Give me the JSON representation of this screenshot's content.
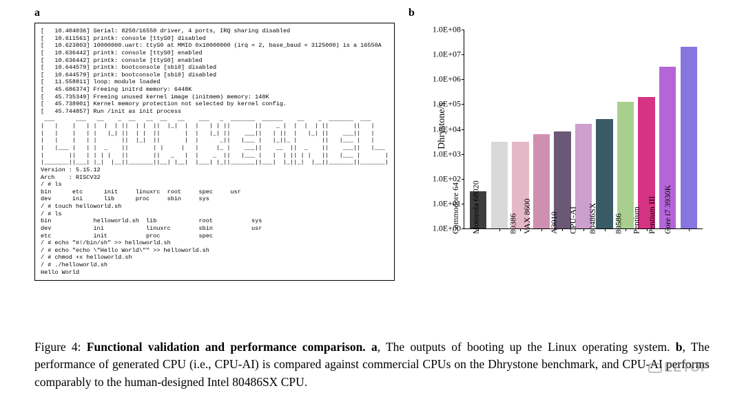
{
  "panel_a": {
    "label": "a",
    "terminal_lines": [
      "[   10.404036] Serial: 8250/16550 driver, 4 ports, IRQ sharing disabled",
      "[   10.611561] printk: console [ttyS0] disabled",
      "[   10.623803] 10000000.uart: ttyS0 at MMIO 0x10000000 (irq = 2, base_baud = 3125000) is a 16550A",
      "[   10.636442] printk: console [ttyS0] enabled",
      "[   10.636442] printk: console [ttyS0] enabled",
      "[   10.644579] printk: bootconsole [sbi0] disabled",
      "[   10.644579] printk: bootconsole [sbi0] disabled",
      "[   11.558811] loop: module loaded",
      "[   45.686374] Freeing initrd memory: 6448K",
      "[   45.735349] Freeing unused kernel image (initmem) memory: 148K",
      "[   45.738901] Kernel memory protection not selected by kernel config.",
      "[   45.744857] Run /init as init process",
      " ___      ___   __    _  __   __  __   __    ___   _  _______  ______    __    _  _______  ___     ",
      "|   |    |   | |  |  | ||  | |  ||  |_|  |  |   | | ||       ||    _ |  |  |  | ||       ||   |    ",
      "|   |    |   | |   |_| ||  | |  ||       |  |   |_| ||    ___||   | ||  |   |_| ||    ___||   |    ",
      "|   |    |   | |       ||  |_|  ||       |  |      _||   |___ |   |_||_ |       ||   |___ |   |    ",
      "|   |___ |   | |  _    ||       | |     |   |     |_ |    ___||    __  ||  _    ||    ___||   |___ ",
      "|       ||   | | | |   ||       ||   _   |  |    _  ||   |___ |   |  | || | |   ||   |___ |       |",
      "|_______||___| |_|  |__||_______||__| |__|  |___| |_||_______||___|  |_||_|  |__||_______||_______|",
      "Version : 5.15.12",
      "Arch    : RISCV32",
      "/ # ls",
      "bin      etc      init     linuxrc  root     spec     usr",
      "dev      ini      lib      proc     sbin     sys",
      "/ # touch helloworld.sh",
      "/ # ls",
      "bin            helloworld.sh  lib            root           sys",
      "dev            ini            linuxrc        sbin           usr",
      "etc            init           proc           spec",
      "/ # echo \"#!/bin/sh\" >> helloworld.sh",
      "/ # echo \"echo \\\"Hello World\\\"\" >> helloworld.sh",
      "/ # chmod +x helloworld.sh",
      "/ # ./helloworld.sh",
      "Hello World"
    ]
  },
  "panel_b": {
    "label": "b",
    "chart": {
      "type": "bar",
      "y_axis_label": "Dhrystone/s",
      "y_scale": "log",
      "ylim_min_exp": 0,
      "ylim_max_exp": 8,
      "y_ticks": [
        {
          "label": "1.0E+00",
          "exp": 0
        },
        {
          "label": "1.0E+01",
          "exp": 1
        },
        {
          "label": "1.0E+02",
          "exp": 2
        },
        {
          "label": "1.0E+03",
          "exp": 3
        },
        {
          "label": "1.0E+04",
          "exp": 4
        },
        {
          "label": "1.0E+05",
          "exp": 5
        },
        {
          "label": "1.0E+06",
          "exp": 6
        },
        {
          "label": "1.0E+07",
          "exp": 7
        },
        {
          "label": "1.0E+08",
          "exp": 8
        }
      ],
      "categories": [
        {
          "label": "Commodore 64",
          "value_exp": 1.5,
          "color": "#3d3d3d"
        },
        {
          "label": "Motorola 68020",
          "value_exp": 3.5,
          "color": "#d9d9d9"
        },
        {
          "label": "80386",
          "value_exp": 3.5,
          "color": "#e4b8c6"
        },
        {
          "label": "VAX 8600",
          "value_exp": 3.8,
          "color": "#cf8fb0"
        },
        {
          "label": "A3010",
          "value_exp": 3.9,
          "color": "#6b5876"
        },
        {
          "label": "CPU-AI",
          "value_exp": 4.2,
          "color": "#cc9fcc"
        },
        {
          "label": "80486SX",
          "value_exp": 4.4,
          "color": "#385b66"
        },
        {
          "label": "80586",
          "value_exp": 5.1,
          "color": "#a9cf8f"
        },
        {
          "label": "Pentium",
          "value_exp": 5.3,
          "color": "#d63384"
        },
        {
          "label": "Pentium III",
          "value_exp": 6.5,
          "color": "#b565d8"
        },
        {
          "label": "Core i7 3930K",
          "value_exp": 7.3,
          "color": "#8677e0"
        }
      ],
      "background_color": "#ffffff",
      "tick_fontsize": 12,
      "label_fontsize": 14,
      "bar_width": 0.8
    }
  },
  "caption": {
    "figure_number": "Figure 4:",
    "title": "Functional validation and performance comparison.",
    "part_a_label": "a",
    "part_a_text": ", The outputs of booting up the Linux operating system.",
    "part_b_label": "b",
    "part_b_text": ", The performance of generated CPU (i.e., CPU-AI) is compared against commercial CPUs on the Dhrystone benchmark, and CPU-AI performs comparably to the human-designed Intel 80486SX CPU."
  },
  "watermark": {
    "text": "EETOP"
  }
}
